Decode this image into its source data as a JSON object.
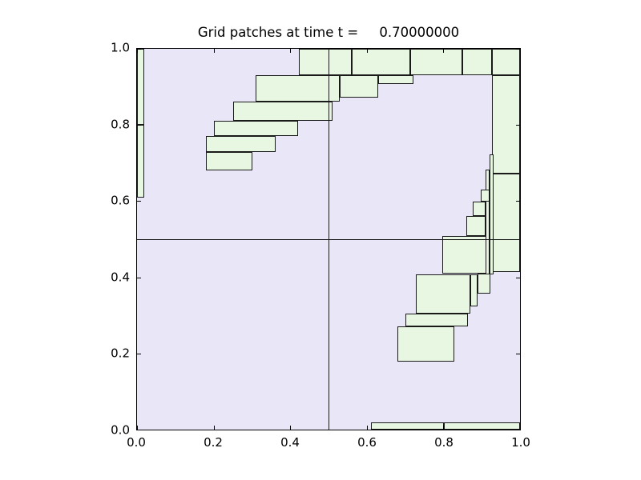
{
  "figure": {
    "background": "#ffffff"
  },
  "chart_data": {
    "type": "rectangles",
    "title": "Grid patches at time t =     0.70000000",
    "xlabel": "",
    "ylabel": "",
    "xlim": [
      0.0,
      1.0
    ],
    "ylim": [
      0.0,
      1.0
    ],
    "x_tick_values": [
      0.0,
      0.2,
      0.4,
      0.6,
      0.8,
      1.0
    ],
    "x_tick_labels": [
      "0.0",
      "0.2",
      "0.4",
      "0.6",
      "0.8",
      "1.0"
    ],
    "y_tick_values": [
      0.0,
      0.2,
      0.4,
      0.6,
      0.8,
      1.0
    ],
    "y_tick_labels": [
      "0.0",
      "0.2",
      "0.4",
      "0.6",
      "0.8",
      "1.0"
    ],
    "grid": {
      "x_dividers": [
        0.5
      ],
      "y_dividers": [
        0.5
      ]
    },
    "legend": null,
    "colors": {
      "figure_background": "#ffffff",
      "plot_background": "#e8e6f7",
      "patch_fill": "#e7f7e1",
      "patch_edge": "#1a1a1a",
      "axis_line": "#000000",
      "text": "#000000"
    },
    "patches": [
      {
        "x0": 0.0,
        "y0": 0.8,
        "x1": 0.019,
        "y1": 1.0
      },
      {
        "x0": 0.0,
        "y0": 0.61,
        "x1": 0.019,
        "y1": 0.8
      },
      {
        "x0": 0.423,
        "y0": 0.931,
        "x1": 0.56,
        "y1": 1.0
      },
      {
        "x0": 0.56,
        "y0": 0.931,
        "x1": 0.713,
        "y1": 1.0
      },
      {
        "x0": 0.713,
        "y0": 0.931,
        "x1": 0.85,
        "y1": 1.0
      },
      {
        "x0": 0.85,
        "y0": 0.931,
        "x1": 0.927,
        "y1": 1.0
      },
      {
        "x0": 0.927,
        "y0": 0.931,
        "x1": 1.0,
        "y1": 1.0
      },
      {
        "x0": 0.927,
        "y0": 0.672,
        "x1": 1.0,
        "y1": 0.931
      },
      {
        "x0": 0.927,
        "y0": 0.414,
        "x1": 1.0,
        "y1": 0.672
      },
      {
        "x0": 0.31,
        "y0": 0.862,
        "x1": 0.529,
        "y1": 0.931
      },
      {
        "x0": 0.529,
        "y0": 0.871,
        "x1": 0.629,
        "y1": 0.931
      },
      {
        "x0": 0.629,
        "y0": 0.908,
        "x1": 0.721,
        "y1": 0.931
      },
      {
        "x0": 0.25,
        "y0": 0.81,
        "x1": 0.51,
        "y1": 0.862
      },
      {
        "x0": 0.2,
        "y0": 0.77,
        "x1": 0.421,
        "y1": 0.81
      },
      {
        "x0": 0.179,
        "y0": 0.73,
        "x1": 0.363,
        "y1": 0.77
      },
      {
        "x0": 0.179,
        "y0": 0.68,
        "x1": 0.302,
        "y1": 0.73
      },
      {
        "x0": 0.921,
        "y0": 0.408,
        "x1": 0.931,
        "y1": 0.722
      },
      {
        "x0": 0.91,
        "y0": 0.408,
        "x1": 0.921,
        "y1": 0.682
      },
      {
        "x0": 0.898,
        "y0": 0.598,
        "x1": 0.921,
        "y1": 0.63
      },
      {
        "x0": 0.877,
        "y0": 0.561,
        "x1": 0.91,
        "y1": 0.598
      },
      {
        "x0": 0.86,
        "y0": 0.508,
        "x1": 0.91,
        "y1": 0.561
      },
      {
        "x0": 0.798,
        "y0": 0.41,
        "x1": 0.913,
        "y1": 0.508
      },
      {
        "x0": 0.89,
        "y0": 0.358,
        "x1": 0.923,
        "y1": 0.41
      },
      {
        "x0": 0.871,
        "y0": 0.324,
        "x1": 0.89,
        "y1": 0.408
      },
      {
        "x0": 0.729,
        "y0": 0.305,
        "x1": 0.871,
        "y1": 0.408
      },
      {
        "x0": 0.7,
        "y0": 0.27,
        "x1": 0.863,
        "y1": 0.305
      },
      {
        "x0": 0.679,
        "y0": 0.178,
        "x1": 0.829,
        "y1": 0.27
      },
      {
        "x0": 0.61,
        "y0": 0.0,
        "x1": 0.802,
        "y1": 0.019
      },
      {
        "x0": 0.802,
        "y0": 0.0,
        "x1": 1.0,
        "y1": 0.019
      }
    ]
  }
}
